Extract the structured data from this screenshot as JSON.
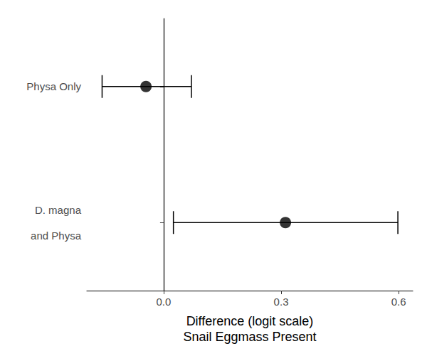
{
  "chart_data": {
    "type": "scatter",
    "orientation": "horizontal",
    "x_label": "Difference (logit scale)\nSnail Eggmass Present",
    "categories": [
      "Physa Only",
      "D. magna\nand Physa"
    ],
    "values": [
      -0.045,
      0.311
    ],
    "ci_low": [
      -0.157,
      0.025
    ],
    "ci_high": [
      0.071,
      0.598
    ],
    "color": "#000000",
    "xlim": [
      -0.196,
      0.636
    ],
    "xticks": [
      {
        "value": 0,
        "label": "0.0"
      },
      {
        "value": 0.3,
        "label": "0.3"
      },
      {
        "value": 0.6,
        "label": "0.6"
      }
    ],
    "grid": false
  }
}
